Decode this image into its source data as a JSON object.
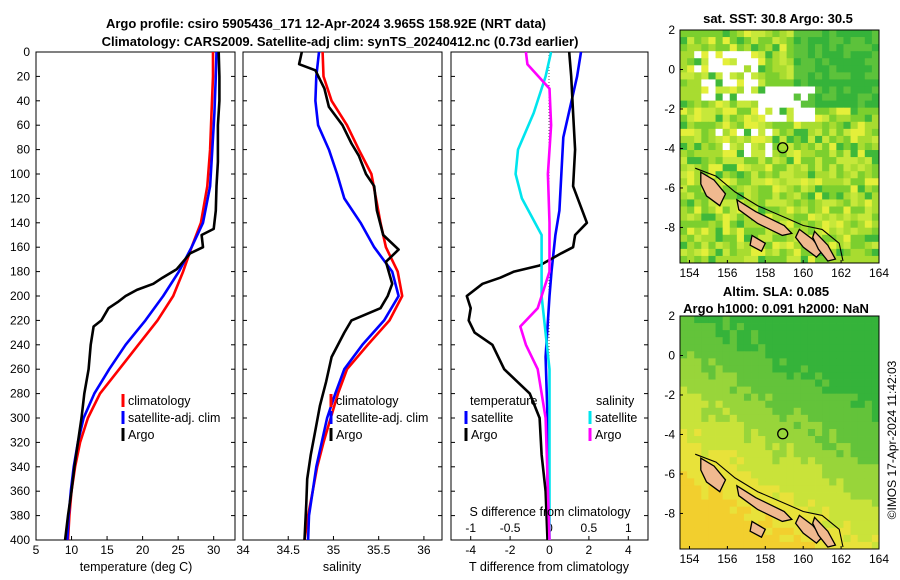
{
  "header": {
    "title_line1": "Argo profile: csiro 5905436_171 12-Apr-2024 3.965S 158.92E (NRT data)",
    "title_line2": "Climatology: CARS2009. Satellite-adj clim: synTS_20240412.nc (0.73d earlier)"
  },
  "credit": "©IMOS 17-Apr-2024 11:42:03",
  "colors": {
    "climatology": "#ff0000",
    "satellite": "#0000ff",
    "argo": "#000000",
    "sal_satellite": "#00e5ee",
    "sal_argo": "#ff00ff"
  },
  "depth_axis": {
    "min": 0,
    "max": 400,
    "ticks": [
      "0",
      "20",
      "40",
      "60",
      "80",
      "100",
      "120",
      "140",
      "160",
      "180",
      "200",
      "220",
      "240",
      "260",
      "280",
      "300",
      "320",
      "340",
      "360",
      "380",
      "400"
    ]
  },
  "chart_data": [
    {
      "type": "line",
      "id": "temperature",
      "xlabel": "temperature (deg C)",
      "xlim": [
        5,
        33
      ],
      "ylim": [
        400,
        0
      ],
      "xticks": [
        "5",
        "10",
        "15",
        "20",
        "25",
        "30"
      ],
      "legend": [
        "climatology",
        "satellite-adj. clim",
        "Argo"
      ],
      "series": [
        {
          "name": "climatology",
          "color": "#ff0000",
          "points": [
            [
              29.9,
              0
            ],
            [
              29.9,
              20
            ],
            [
              29.7,
              50
            ],
            [
              29.5,
              80
            ],
            [
              29.1,
              110
            ],
            [
              28.2,
              140
            ],
            [
              26.9,
              160
            ],
            [
              25.7,
              180
            ],
            [
              24.3,
              200
            ],
            [
              22.1,
              220
            ],
            [
              19.4,
              240
            ],
            [
              16.7,
              260
            ],
            [
              14.0,
              280
            ],
            [
              12.3,
              300
            ],
            [
              11.2,
              320
            ],
            [
              10.5,
              340
            ],
            [
              10.0,
              360
            ],
            [
              9.7,
              380
            ],
            [
              9.5,
              400
            ]
          ]
        },
        {
          "name": "satellite-adj. clim",
          "color": "#0000ff",
          "points": [
            [
              30.4,
              0
            ],
            [
              30.3,
              20
            ],
            [
              30.1,
              50
            ],
            [
              29.8,
              80
            ],
            [
              29.5,
              110
            ],
            [
              28.5,
              140
            ],
            [
              26.9,
              160
            ],
            [
              25.1,
              180
            ],
            [
              22.9,
              200
            ],
            [
              20.4,
              220
            ],
            [
              17.6,
              240
            ],
            [
              15.3,
              260
            ],
            [
              13.2,
              280
            ],
            [
              11.7,
              300
            ],
            [
              10.9,
              320
            ],
            [
              10.3,
              340
            ],
            [
              9.9,
              360
            ],
            [
              9.6,
              380
            ],
            [
              9.4,
              400
            ]
          ]
        },
        {
          "name": "Argo",
          "color": "#000000",
          "points": [
            [
              30.7,
              0
            ],
            [
              30.8,
              20
            ],
            [
              30.8,
              40
            ],
            [
              30.6,
              60
            ],
            [
              30.6,
              90
            ],
            [
              30.4,
              110
            ],
            [
              30.3,
              130
            ],
            [
              30.0,
              145
            ],
            [
              28.3,
              150
            ],
            [
              28.5,
              160
            ],
            [
              26.7,
              165
            ],
            [
              24.8,
              178
            ],
            [
              22.8,
              185
            ],
            [
              21.5,
              190
            ],
            [
              19.2,
              195
            ],
            [
              17.6,
              200
            ],
            [
              16.5,
              205
            ],
            [
              15.2,
              210
            ],
            [
              14.2,
              220
            ],
            [
              13.1,
              225
            ],
            [
              12.7,
              240
            ],
            [
              12.4,
              260
            ],
            [
              11.8,
              280
            ],
            [
              11.4,
              300
            ],
            [
              10.9,
              320
            ],
            [
              10.4,
              340
            ],
            [
              10.0,
              360
            ],
            [
              9.5,
              380
            ],
            [
              9.1,
              400
            ]
          ]
        }
      ]
    },
    {
      "type": "line",
      "id": "salinity",
      "xlabel": "salinity",
      "xlim": [
        34,
        36.2
      ],
      "ylim": [
        400,
        0
      ],
      "xticks": [
        "34",
        "34.5",
        "35",
        "35.5",
        "36"
      ],
      "legend": [
        "climatology",
        "satellite-adj. clim",
        "Argo"
      ],
      "series": [
        {
          "name": "climatology",
          "color": "#ff0000",
          "points": [
            [
              34.88,
              0
            ],
            [
              34.89,
              20
            ],
            [
              34.98,
              40
            ],
            [
              35.15,
              60
            ],
            [
              35.28,
              80
            ],
            [
              35.42,
              100
            ],
            [
              35.47,
              120
            ],
            [
              35.52,
              140
            ],
            [
              35.58,
              160
            ],
            [
              35.71,
              180
            ],
            [
              35.76,
              200
            ],
            [
              35.62,
              220
            ],
            [
              35.38,
              240
            ],
            [
              35.15,
              260
            ],
            [
              35.05,
              280
            ],
            [
              34.97,
              300
            ],
            [
              34.89,
              320
            ],
            [
              34.82,
              340
            ],
            [
              34.77,
              360
            ],
            [
              34.72,
              380
            ],
            [
              34.68,
              400
            ]
          ]
        },
        {
          "name": "satellite-adj. clim",
          "color": "#0000ff",
          "points": [
            [
              34.84,
              0
            ],
            [
              34.81,
              20
            ],
            [
              34.8,
              40
            ],
            [
              34.83,
              60
            ],
            [
              34.95,
              80
            ],
            [
              35.04,
              100
            ],
            [
              35.12,
              120
            ],
            [
              35.3,
              140
            ],
            [
              35.45,
              160
            ],
            [
              35.65,
              180
            ],
            [
              35.72,
              200
            ],
            [
              35.56,
              220
            ],
            [
              35.32,
              240
            ],
            [
              35.12,
              260
            ],
            [
              35.02,
              280
            ],
            [
              34.93,
              300
            ],
            [
              34.87,
              320
            ],
            [
              34.81,
              340
            ],
            [
              34.77,
              360
            ],
            [
              34.73,
              380
            ],
            [
              34.72,
              400
            ]
          ]
        },
        {
          "name": "Argo",
          "color": "#000000",
          "points": [
            [
              34.65,
              0
            ],
            [
              34.62,
              10
            ],
            [
              34.8,
              15
            ],
            [
              34.9,
              30
            ],
            [
              34.95,
              45
            ],
            [
              35.1,
              60
            ],
            [
              35.2,
              75
            ],
            [
              35.28,
              85
            ],
            [
              35.36,
              100
            ],
            [
              35.45,
              110
            ],
            [
              35.48,
              130
            ],
            [
              35.55,
              150
            ],
            [
              35.72,
              162
            ],
            [
              35.58,
              172
            ],
            [
              35.65,
              190
            ],
            [
              35.6,
              200
            ],
            [
              35.52,
              210
            ],
            [
              35.2,
              220
            ],
            [
              35.12,
              230
            ],
            [
              34.98,
              250
            ],
            [
              34.92,
              270
            ],
            [
              34.85,
              290
            ],
            [
              34.8,
              310
            ],
            [
              34.75,
              330
            ],
            [
              34.71,
              350
            ],
            [
              34.7,
              370
            ],
            [
              34.68,
              400
            ]
          ]
        }
      ]
    },
    {
      "type": "line",
      "id": "difference",
      "xlabel": "T difference from climatology",
      "xlabel_top": "S difference from climatology",
      "xlim": [
        -5,
        5
      ],
      "ylim": [
        400,
        0
      ],
      "xticks": [
        "-4",
        "-2",
        "0",
        "2",
        "4"
      ],
      "xticks_top": [
        "-1",
        "-0.5",
        "0",
        "0.5",
        "1"
      ],
      "legend_titles": [
        "temperature",
        "salinity"
      ],
      "legend": [
        "satellite",
        "Argo",
        "satellite",
        "Argo"
      ],
      "series": [
        {
          "name": "temperature satellite",
          "color": "#0000ff",
          "points": [
            [
              1.6,
              0
            ],
            [
              1.4,
              20
            ],
            [
              0.7,
              70
            ],
            [
              0.5,
              130
            ],
            [
              0.3,
              150
            ],
            [
              0.1,
              180
            ],
            [
              0.0,
              200
            ],
            [
              -0.2,
              250
            ],
            [
              -0.1,
              300
            ],
            [
              -0.1,
              350
            ],
            [
              -0.05,
              400
            ]
          ]
        },
        {
          "name": "temperature Argo",
          "color": "#000000",
          "points": [
            [
              1.0,
              0
            ],
            [
              1.1,
              20
            ],
            [
              1.2,
              50
            ],
            [
              1.3,
              80
            ],
            [
              1.2,
              110
            ],
            [
              1.9,
              140
            ],
            [
              1.3,
              150
            ],
            [
              1.2,
              160
            ],
            [
              0.6,
              165
            ],
            [
              -0.5,
              175
            ],
            [
              -1.8,
              180
            ],
            [
              -2.5,
              185
            ],
            [
              -3.4,
              190
            ],
            [
              -4.2,
              200
            ],
            [
              -4.0,
              210
            ],
            [
              -4.1,
              220
            ],
            [
              -3.8,
              230
            ],
            [
              -2.9,
              240
            ],
            [
              -2.3,
              260
            ],
            [
              -1.0,
              280
            ],
            [
              -0.5,
              300
            ],
            [
              -0.4,
              330
            ],
            [
              -0.2,
              360
            ],
            [
              -0.1,
              400
            ]
          ]
        },
        {
          "name": "salinity satellite",
          "color": "#00e5ee",
          "points": [
            [
              0.02,
              0
            ],
            [
              -0.05,
              20
            ],
            [
              -0.2,
              50
            ],
            [
              -0.4,
              80
            ],
            [
              -0.43,
              100
            ],
            [
              -0.35,
              120
            ],
            [
              -0.1,
              150
            ],
            [
              -0.1,
              200
            ],
            [
              0.0,
              260
            ],
            [
              0.0,
              400
            ]
          ]
        },
        {
          "name": "salinity Argo",
          "color": "#ff00ff",
          "points": [
            [
              -0.3,
              0
            ],
            [
              -0.28,
              10
            ],
            [
              0.0,
              30
            ],
            [
              0.02,
              60
            ],
            [
              -0.02,
              100
            ],
            [
              0.0,
              140
            ],
            [
              0.0,
              180
            ],
            [
              -0.15,
              210
            ],
            [
              -0.37,
              225
            ],
            [
              -0.3,
              240
            ],
            [
              -0.15,
              260
            ],
            [
              -0.05,
              300
            ],
            [
              0.0,
              400
            ]
          ]
        }
      ]
    }
  ],
  "maps": [
    {
      "id": "sst",
      "title": "sat. SST: 30.8 Argo: 30.5",
      "xlim": [
        153.5,
        164
      ],
      "ylim": [
        -9.8,
        2
      ],
      "xticks": [
        "154",
        "156",
        "158",
        "160",
        "162",
        "164"
      ],
      "yticks": [
        "2",
        "0",
        "-2",
        "-4",
        "-6",
        "-8"
      ],
      "marker": {
        "lon": 158.92,
        "lat": -3.965
      }
    },
    {
      "id": "sla",
      "title_line1": "Altim. SLA: 0.085",
      "title_line2": "Argo h1000: 0.091 h2000: NaN",
      "xlim": [
        153.5,
        164
      ],
      "ylim": [
        -9.8,
        2
      ],
      "xticks": [
        "154",
        "156",
        "158",
        "160",
        "162",
        "164"
      ],
      "yticks": [
        "2",
        "0",
        "-2",
        "-4",
        "-6",
        "-8"
      ],
      "marker": {
        "lon": 158.92,
        "lat": -3.965
      }
    }
  ]
}
